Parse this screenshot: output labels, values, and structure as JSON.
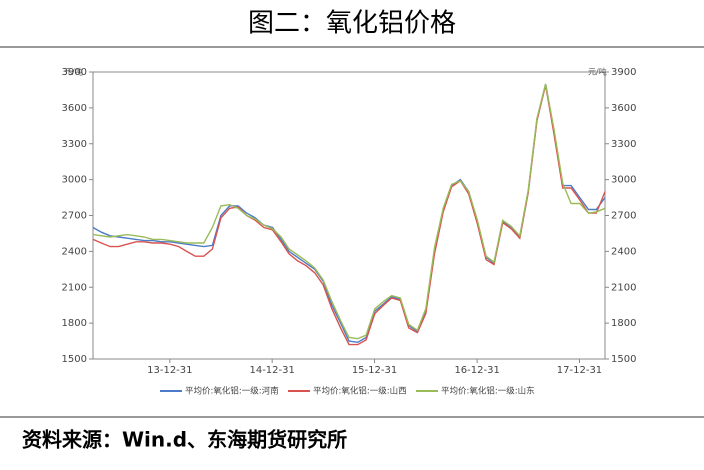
{
  "chart_data": {
    "type": "line",
    "title": "图二：氧化铝价格",
    "y_unit": "元/吨",
    "source": "资料来源：Win.d、东海期货研究所",
    "x": [
      "13-04-01",
      "13-05-01",
      "13-06-01",
      "13-07-01",
      "13-08-01",
      "13-09-01",
      "13-10-01",
      "13-11-01",
      "13-12-01",
      "14-01-01",
      "14-02-01",
      "14-03-01",
      "14-04-01",
      "14-05-01",
      "14-06-01",
      "14-07-01",
      "14-08-01",
      "14-09-01",
      "14-10-01",
      "14-11-01",
      "14-12-01",
      "15-01-01",
      "15-02-01",
      "15-03-01",
      "15-04-01",
      "15-05-01",
      "15-06-01",
      "15-07-01",
      "15-08-01",
      "15-09-01",
      "15-10-01",
      "15-11-01",
      "15-12-01",
      "16-01-01",
      "16-02-01",
      "16-03-01",
      "16-04-01",
      "16-05-01",
      "16-06-01",
      "16-07-01",
      "16-08-01",
      "16-09-01",
      "16-10-01",
      "16-11-01",
      "16-12-01",
      "17-01-01",
      "17-02-01",
      "17-03-01",
      "17-04-01",
      "17-05-01",
      "17-06-01",
      "17-07-01",
      "17-08-01",
      "17-09-01",
      "17-10-01",
      "17-11-01",
      "17-12-01",
      "18-01-01",
      "18-02-01",
      "18-03-01",
      "18-04-01"
    ],
    "series": [
      {
        "name": "平均价:氧化铝:一级:河南",
        "color": "#4a7cc9",
        "values": [
          2600,
          2560,
          2530,
          2520,
          2510,
          2500,
          2490,
          2490,
          2480,
          2480,
          2470,
          2460,
          2450,
          2440,
          2450,
          2700,
          2780,
          2780,
          2720,
          2680,
          2620,
          2600,
          2500,
          2400,
          2350,
          2300,
          2250,
          2150,
          1950,
          1800,
          1650,
          1640,
          1680,
          1900,
          1960,
          2020,
          2000,
          1780,
          1730,
          1900,
          2400,
          2750,
          2950,
          3000,
          2900,
          2650,
          2350,
          2300,
          2650,
          2600,
          2520,
          2900,
          3500,
          3800,
          3400,
          2950,
          2950,
          2850,
          2750,
          2750,
          2850
        ]
      },
      {
        "name": "平均价:氧化铝:一级:山西",
        "color": "#d9534f",
        "values": [
          2500,
          2470,
          2440,
          2440,
          2460,
          2480,
          2480,
          2470,
          2470,
          2460,
          2440,
          2400,
          2360,
          2360,
          2420,
          2680,
          2760,
          2770,
          2700,
          2660,
          2600,
          2580,
          2480,
          2380,
          2320,
          2280,
          2220,
          2120,
          1920,
          1760,
          1620,
          1620,
          1660,
          1880,
          1950,
          2010,
          1990,
          1760,
          1720,
          1880,
          2380,
          2730,
          2940,
          2990,
          2880,
          2630,
          2330,
          2290,
          2640,
          2590,
          2510,
          2890,
          3490,
          3790,
          3380,
          2930,
          2930,
          2830,
          2720,
          2720,
          2900
        ]
      },
      {
        "name": "平均价:氧化铝:一级:山东",
        "color": "#9bbb59",
        "values": [
          2540,
          2530,
          2520,
          2530,
          2540,
          2530,
          2520,
          2500,
          2500,
          2490,
          2480,
          2470,
          2470,
          2470,
          2600,
          2780,
          2790,
          2760,
          2700,
          2670,
          2620,
          2590,
          2520,
          2420,
          2370,
          2320,
          2260,
          2160,
          1980,
          1820,
          1680,
          1670,
          1700,
          1920,
          1980,
          2030,
          2010,
          1790,
          1740,
          1920,
          2430,
          2760,
          2960,
          2990,
          2900,
          2660,
          2360,
          2310,
          2660,
          2610,
          2530,
          2910,
          3510,
          3800,
          3420,
          2970,
          2800,
          2800,
          2720,
          2730,
          2760
        ]
      }
    ],
    "xlim": [
      "13-04-01",
      "18-04-01"
    ],
    "xticks": [
      "13-12-31",
      "14-12-31",
      "15-12-31",
      "16-12-31",
      "17-12-31"
    ],
    "ylim": [
      1500,
      3900
    ],
    "yticks": [
      1500,
      1800,
      2100,
      2400,
      2700,
      3000,
      3300,
      3600,
      3900
    ],
    "y2lim": [
      1500,
      3900
    ],
    "y2ticks": [
      1500,
      1800,
      2100,
      2400,
      2700,
      3000,
      3300,
      3600,
      3900
    ]
  }
}
